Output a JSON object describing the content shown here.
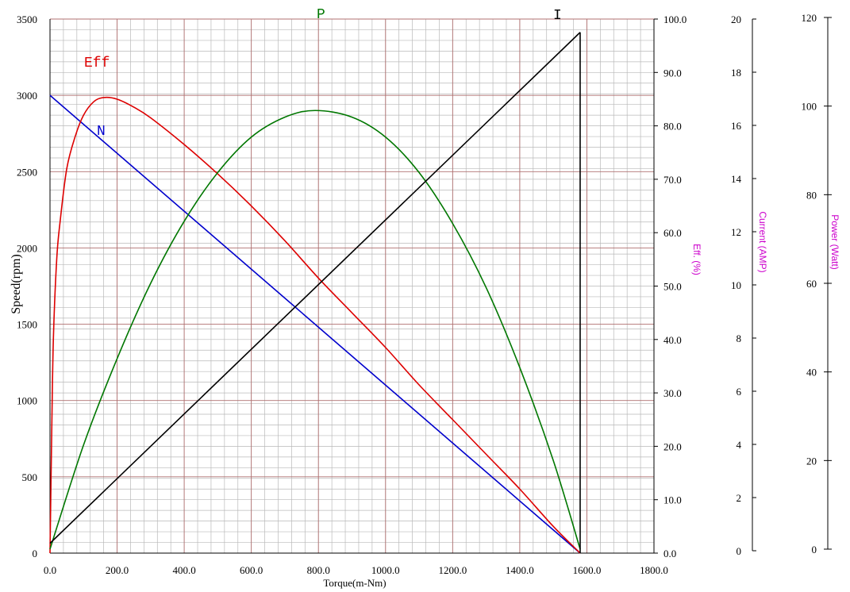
{
  "chart_data": {
    "type": "line",
    "xlabel": "Torque(m-Nm)",
    "xlim": [
      0,
      1800
    ],
    "x_ticks": [
      "0.0",
      "200.0",
      "400.0",
      "600.0",
      "800.0",
      "1000.0",
      "1200.0",
      "1400.0",
      "1600.0",
      "1800.0"
    ],
    "axes": {
      "speed": {
        "label": "Speed(rpm)",
        "ylim": [
          0,
          3500
        ],
        "ticks": [
          "0",
          "500",
          "1000",
          "1500",
          "2000",
          "2500",
          "3000",
          "3500"
        ]
      },
      "eff": {
        "label": "Eff. (%)",
        "ylim": [
          0,
          100
        ],
        "ticks": [
          "0.0",
          "10.0",
          "20.0",
          "30.0",
          "40.0",
          "50.0",
          "60.0",
          "70.0",
          "80.0",
          "90.0",
          "100.0"
        ]
      },
      "current": {
        "label": "Current (AMP)",
        "ylim": [
          0,
          20
        ],
        "ticks": [
          "0",
          "2",
          "4",
          "6",
          "8",
          "10",
          "12",
          "14",
          "16",
          "18",
          "20"
        ]
      },
      "power": {
        "label": "Power (Watt)",
        "ylim": [
          0,
          120
        ],
        "ticks": [
          "0",
          "20",
          "40",
          "60",
          "80",
          "100",
          "120"
        ]
      }
    },
    "grid": true,
    "series": [
      {
        "name": "N",
        "axis": "speed",
        "color": "#0000cc",
        "x": [
          0,
          1580
        ],
        "y": [
          3000,
          0
        ]
      },
      {
        "name": "Eff",
        "axis": "eff",
        "color": "#dd0000",
        "x": [
          0,
          5,
          10,
          20,
          30,
          50,
          75,
          100,
          130,
          160,
          200,
          250,
          300,
          400,
          500,
          600,
          700,
          800,
          900,
          1000,
          1100,
          1200,
          1300,
          1400,
          1500,
          1580
        ],
        "y": [
          0,
          22,
          40,
          55,
          62,
          72,
          78,
          82,
          84.5,
          85.3,
          85,
          83.5,
          81.5,
          76.5,
          71,
          65,
          58.5,
          51.5,
          45,
          38.5,
          31.5,
          25,
          18.5,
          12,
          5,
          0
        ]
      },
      {
        "name": "P",
        "axis": "power",
        "color": "#007700",
        "x": [
          0,
          100,
          200,
          300,
          400,
          500,
          600,
          700,
          790,
          900,
          1000,
          1100,
          1200,
          1300,
          1400,
          1500,
          1580
        ],
        "y": [
          0,
          23.5,
          43,
          60,
          74,
          85,
          93,
          97.5,
          99,
          97.5,
          93,
          85,
          73.5,
          59,
          41,
          20,
          0
        ]
      },
      {
        "name": "I",
        "axis": "current",
        "color": "#000000",
        "x": [
          0,
          1580
        ],
        "y": [
          0.28,
          19.5
        ]
      }
    ],
    "labels": [
      "Eff",
      "N",
      "P",
      "I"
    ]
  }
}
